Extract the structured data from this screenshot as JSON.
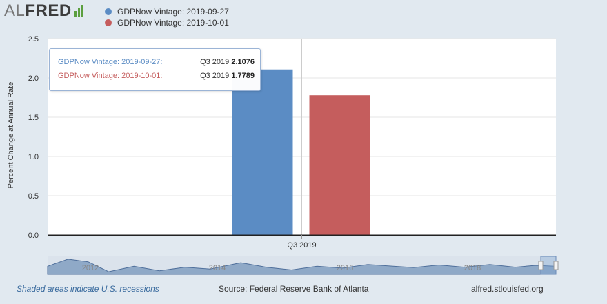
{
  "logo": {
    "part1": "AL",
    "part2": "FRED"
  },
  "chart_data": {
    "type": "bar",
    "categories": [
      "Q3 2019"
    ],
    "series": [
      {
        "name": "GDPNow Vintage: 2019-09-27",
        "values": [
          2.1076
        ],
        "color": "#5b8cc4"
      },
      {
        "name": "GDPNow Vintage: 2019-10-01",
        "values": [
          1.7789
        ],
        "color": "#c55d5d"
      }
    ],
    "ylabel": "Percent Change at Annual Rate",
    "ylim": [
      0,
      2.5
    ],
    "yticks": [
      "0.0",
      "0.5",
      "1.0",
      "1.5",
      "2.0",
      "2.5"
    ],
    "legend": "top-left",
    "grid": true
  },
  "tooltip": {
    "rows": [
      {
        "label": "GDPNow Vintage: 2019-09-27:",
        "period": "Q3 2019",
        "value": "2.1076",
        "color": "#5b8cc4"
      },
      {
        "label": "GDPNow Vintage: 2019-10-01:",
        "period": "Q3 2019",
        "value": "1.7789",
        "color": "#c55d5d"
      }
    ]
  },
  "navigator": {
    "years": [
      "2012",
      "2014",
      "2016",
      "2018"
    ]
  },
  "footer": {
    "recession_note": "Shaded areas indicate U.S. recessions",
    "source": "Source: Federal Reserve Bank of Atlanta",
    "site": "alfred.stlouisfed.org"
  }
}
